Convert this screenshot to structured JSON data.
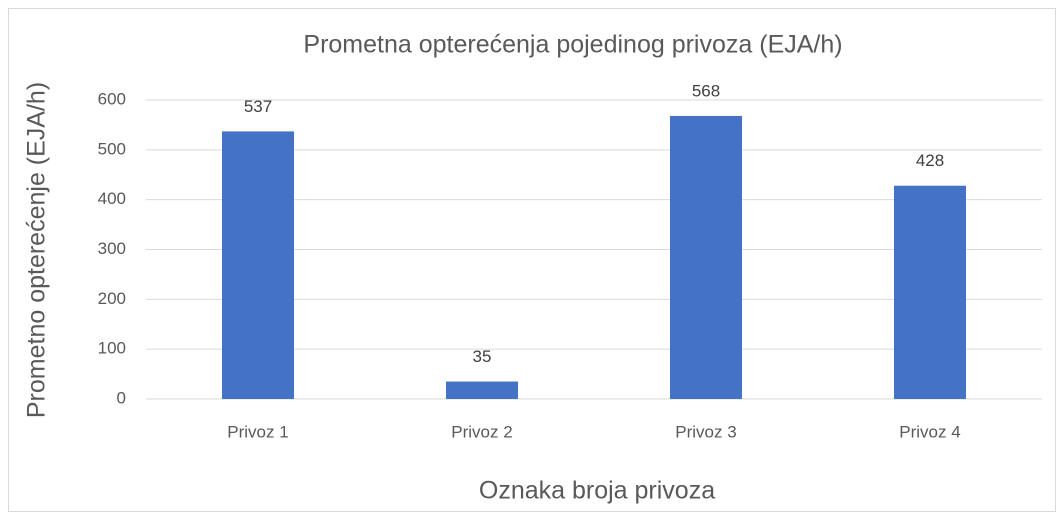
{
  "chart_data": {
    "type": "bar",
    "title": "Prometna opterećenja pojedinog privoza (EJA/h)",
    "x_label": "Oznaka broja privoza",
    "y_label": "Prometno opterećenje (EJA/h)",
    "categories": [
      "Privoz 1",
      "Privoz 2",
      "Privoz 3",
      "Privoz 4"
    ],
    "values": [
      537,
      35,
      568,
      428
    ],
    "color": "#4472c4",
    "ylim": [
      0,
      600
    ],
    "yticks": [
      0,
      100,
      200,
      300,
      400,
      500,
      600
    ],
    "grid": true
  }
}
